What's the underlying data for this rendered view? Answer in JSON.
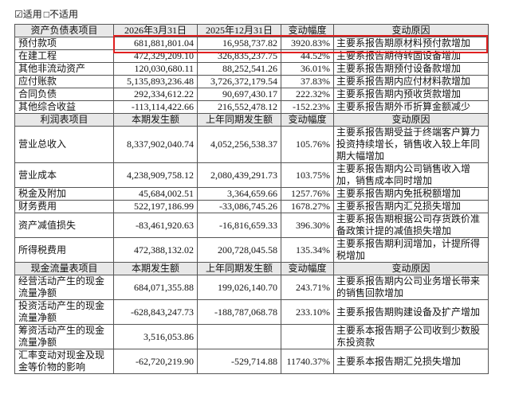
{
  "options": [
    "☑适用",
    "□不适用"
  ],
  "sections": [
    {
      "header": [
        "资产负债表项目",
        "2026年3月31日",
        "2025年12月31日",
        "变动幅度",
        "变动原因"
      ],
      "rows": [
        [
          "预付款项",
          "681,881,801.04",
          "16,958,737.82",
          "3920.83%",
          "主要系报告期原材料预付款增加"
        ],
        [
          "在建工程",
          "472,329,209.10",
          "326,835,237.75",
          "44.52%",
          "主要系报告期待转固设备增加"
        ],
        [
          "其他非流动资产",
          "120,030,680.11",
          "88,252,541.26",
          "36.01%",
          "主要系报告期预付设备款增加"
        ],
        [
          "应付账款",
          "5,135,893,236.48",
          "3,726,372,179.54",
          "37.83%",
          "主要系报告期内应付材料款增加"
        ],
        [
          "合同负债",
          "292,334,612.22",
          "90,697,430.17",
          "222.32%",
          "主要系报告期内预收货款增加"
        ],
        [
          "其他综合收益",
          "-113,114,422.66",
          "216,552,478.12",
          "-152.23%",
          "主要系报告期外币折算金额减少"
        ]
      ]
    },
    {
      "header": [
        "利润表项目",
        "本期发生额",
        "上年同期发生额",
        "变动幅度",
        "变动原因"
      ],
      "rows": [
        [
          "营业总收入",
          "8,337,902,040.74",
          "4,052,256,538.37",
          "105.76%",
          "主要系报告期受益于终端客户算力投资持续增长，销售收入较上年同期大幅增加"
        ],
        [
          "营业成本",
          "4,238,909,758.12",
          "2,080,439,291.73",
          "103.75%",
          "主要系报告期内公司销售收入增加，销售成本同时增加"
        ],
        [
          "税金及附加",
          "45,684,002.51",
          "3,364,659.66",
          "1257.76%",
          "主要系报告期内免抵税额增加"
        ],
        [
          "财务费用",
          "522,197,186.99",
          "-33,086,745.26",
          "1678.27%",
          "主要系报告期内汇兑损失增加"
        ],
        [
          "资产减值损失",
          "-83,461,920.63",
          "-16,816,659.33",
          "396.30%",
          "主要系报告期根据公司存货跌价准备政策计提的减值损失增加"
        ],
        [
          "所得税费用",
          "472,388,132.02",
          "200,728,045.58",
          "135.34%",
          "主要系报告期利润增加，计提所得税增加"
        ]
      ]
    },
    {
      "header": [
        "现金流量表项目",
        "本期发生额",
        "上年同期发生额",
        "变动幅度",
        "变动原因"
      ],
      "rows": [
        [
          "经营活动产生的现金流量净额",
          "684,071,355.88",
          "199,026,140.70",
          "243.71%",
          "主要系报告期内公司业务增长带来的销售回款增加"
        ],
        [
          "投资活动产生的现金流量净额",
          "-628,843,247.73",
          "-188,787,068.78",
          "233.10%",
          "主要系报告期购建设备及扩产增加"
        ],
        [
          "筹资活动产生的现金流量净额",
          "3,516,053.86",
          null,
          null,
          "主要系本报告期子公司收到少数股东投资款"
        ],
        [
          "汇率变动对现金及现金等价物的影响",
          "-62,720,219.90",
          "-529,714.88",
          "11740.37%",
          "主要系本报告期汇兑损失增加"
        ]
      ]
    }
  ]
}
